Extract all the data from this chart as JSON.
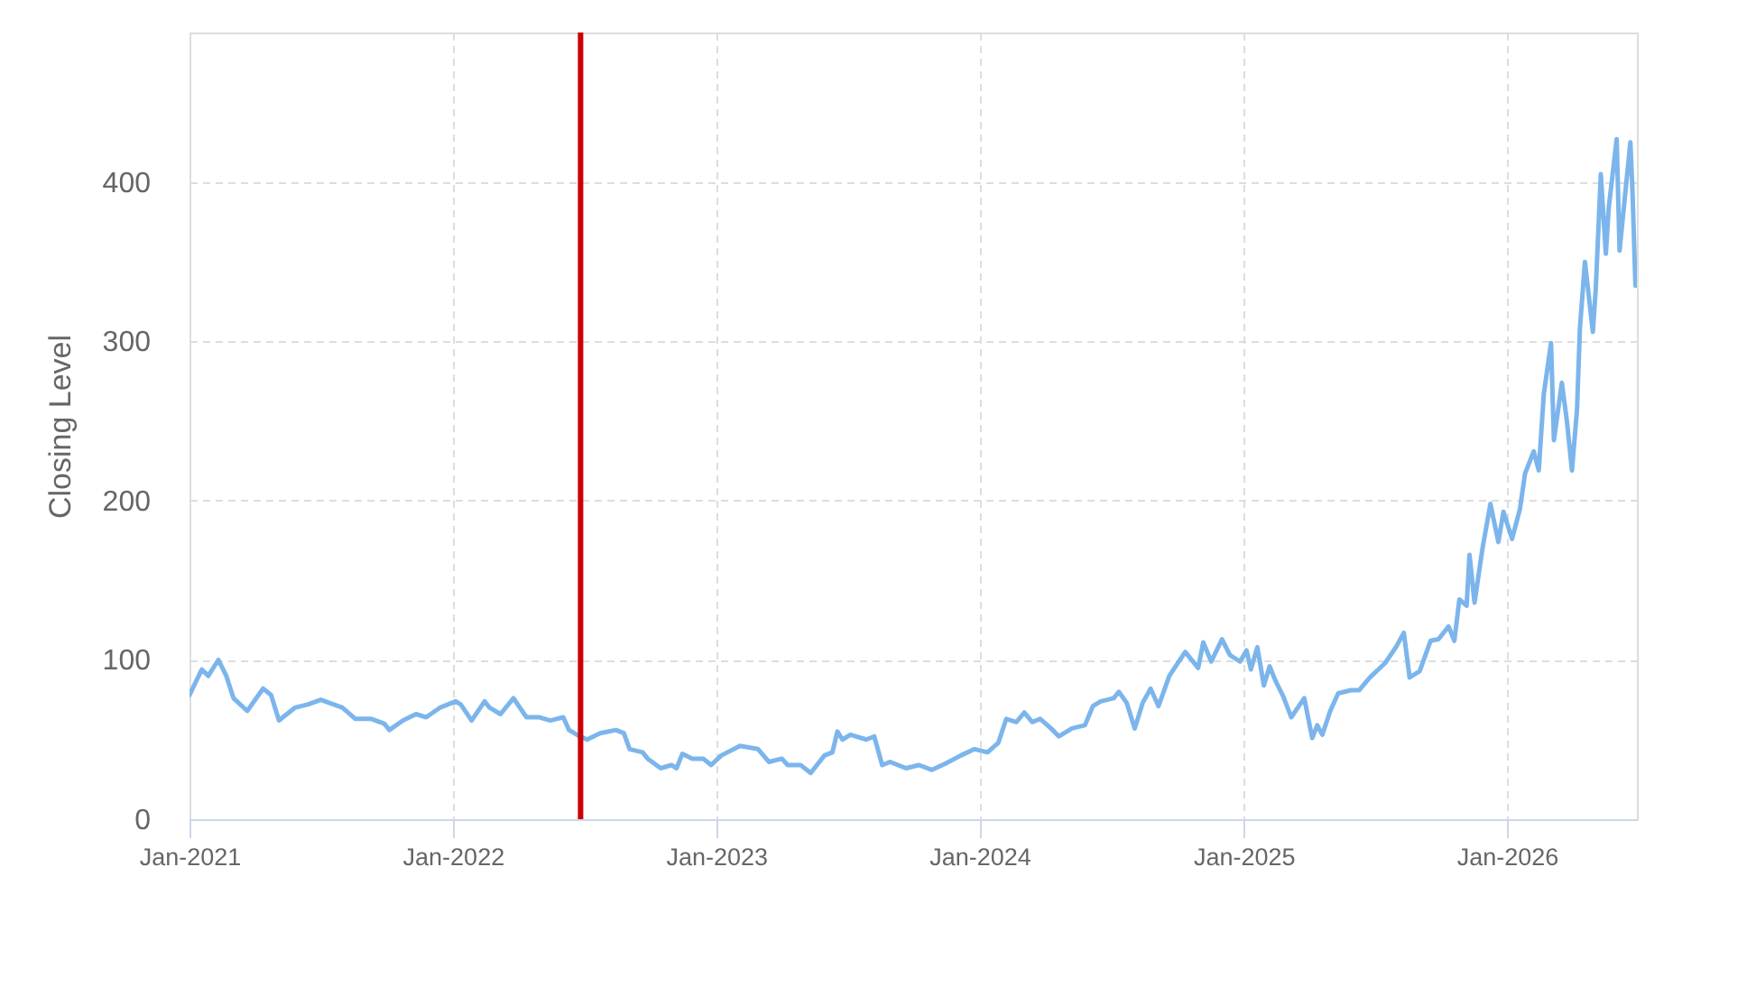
{
  "chart_data": {
    "type": "line",
    "ylabel": "Closing Level",
    "x": [
      "2021-01-01",
      "2021-01-18",
      "2021-01-27",
      "2021-02-10",
      "2021-02-21",
      "2021-03-03",
      "2021-03-22",
      "2021-04-13",
      "2021-04-24",
      "2021-05-05",
      "2021-05-27",
      "2021-06-14",
      "2021-07-02",
      "2021-08-01",
      "2021-08-19",
      "2021-09-10",
      "2021-09-28",
      "2021-10-05",
      "2021-10-24",
      "2021-11-11",
      "2021-11-25",
      "2021-12-14",
      "2022-01-05",
      "2022-01-12",
      "2022-01-27",
      "2022-02-14",
      "2022-02-21",
      "2022-03-08",
      "2022-03-26",
      "2022-04-13",
      "2022-05-01",
      "2022-05-16",
      "2022-06-03",
      "2022-06-11",
      "2022-06-22",
      "2022-07-06",
      "2022-07-24",
      "2022-08-15",
      "2022-08-26",
      "2022-09-03",
      "2022-09-21",
      "2022-09-28",
      "2022-10-16",
      "2022-10-31",
      "2022-11-07",
      "2022-11-15",
      "2022-11-29",
      "2022-12-14",
      "2022-12-25",
      "2023-01-08",
      "2023-02-03",
      "2023-02-28",
      "2023-03-15",
      "2023-04-02",
      "2023-04-10",
      "2023-04-28",
      "2023-05-12",
      "2023-05-31",
      "2023-06-11",
      "2023-06-18",
      "2023-06-25",
      "2023-07-06",
      "2023-07-28",
      "2023-08-08",
      "2023-08-19",
      "2023-08-30",
      "2023-09-21",
      "2023-10-09",
      "2023-10-27",
      "2023-11-15",
      "2023-12-06",
      "2023-12-25",
      "2024-01-12",
      "2024-01-27",
      "2024-02-07",
      "2024-02-21",
      "2024-03-03",
      "2024-03-14",
      "2024-03-25",
      "2024-04-09",
      "2024-04-20",
      "2024-05-08",
      "2024-05-26",
      "2024-06-06",
      "2024-06-17",
      "2024-07-05",
      "2024-07-12",
      "2024-07-23",
      "2024-08-03",
      "2024-08-14",
      "2024-08-25",
      "2024-09-05",
      "2024-09-20",
      "2024-10-12",
      "2024-10-30",
      "2024-11-06",
      "2024-11-17",
      "2024-12-02",
      "2024-12-13",
      "2024-12-27",
      "2025-01-05",
      "2025-01-11",
      "2025-01-20",
      "2025-01-29",
      "2025-02-06",
      "2025-02-14",
      "2025-02-25",
      "2025-03-08",
      "2025-03-26",
      "2025-04-06",
      "2025-04-13",
      "2025-04-20",
      "2025-05-01",
      "2025-05-12",
      "2025-05-30",
      "2025-06-10",
      "2025-06-25",
      "2025-07-16",
      "2025-07-31",
      "2025-08-11",
      "2025-08-19",
      "2025-09-02",
      "2025-09-17",
      "2025-09-28",
      "2025-10-12",
      "2025-10-20",
      "2025-10-27",
      "2025-11-06",
      "2025-11-10",
      "2025-11-17",
      "2025-11-28",
      "2025-12-09",
      "2025-12-20",
      "2025-12-27",
      "2026-01-08",
      "2026-01-19",
      "2026-01-26",
      "2026-02-07",
      "2026-02-14",
      "2026-02-21",
      "2026-03-03",
      "2026-03-07",
      "2026-03-18",
      "2026-03-25",
      "2026-04-01",
      "2026-04-08",
      "2026-04-12",
      "2026-04-19",
      "2026-04-30",
      "2026-05-04",
      "2026-05-11",
      "2026-05-18",
      "2026-05-22",
      "2026-06-02",
      "2026-06-06",
      "2026-06-13",
      "2026-06-21",
      "2026-06-24",
      "2026-06-28"
    ],
    "series": [
      {
        "color": "#7cb5ec",
        "values": [
          78,
          94,
          90,
          100,
          90,
          76,
          68,
          82,
          78,
          62,
          70,
          72,
          75,
          70,
          63,
          63,
          60,
          56,
          62,
          66,
          64,
          70,
          74,
          72,
          62,
          74,
          70,
          66,
          76,
          64,
          64,
          62,
          64,
          56,
          53,
          50,
          54,
          56,
          54,
          44,
          42,
          38,
          32,
          34,
          32,
          41,
          38,
          38,
          34,
          40,
          46,
          44,
          36,
          38,
          34,
          34,
          29,
          40,
          42,
          55,
          50,
          53,
          50,
          52,
          34,
          36,
          32,
          34,
          31,
          35,
          40,
          44,
          42,
          48,
          63,
          61,
          67,
          61,
          63,
          57,
          52,
          57,
          59,
          71,
          74,
          76,
          80,
          73,
          57,
          73,
          82,
          71,
          90,
          105,
          95,
          111,
          99,
          113,
          103,
          99,
          106,
          94,
          108,
          84,
          96,
          87,
          77,
          64,
          76,
          51,
          59,
          53,
          68,
          79,
          81,
          81,
          89,
          98,
          108,
          117,
          89,
          93,
          112,
          113,
          121,
          112,
          138,
          134,
          166,
          136,
          170,
          198,
          174,
          193,
          176,
          195,
          217,
          231,
          219,
          267,
          299,
          238,
          274,
          250,
          219,
          257,
          308,
          350,
          306,
          333,
          405,
          355,
          384,
          427,
          357,
          389,
          425,
          393,
          335
        ]
      }
    ],
    "xlim": [
      "2021-01-01",
      "2026-06-30"
    ],
    "xticks": [
      {
        "value": "2021-01-01",
        "label": "Jan-2021"
      },
      {
        "value": "2022-01-01",
        "label": "Jan-2022"
      },
      {
        "value": "2023-01-01",
        "label": "Jan-2023"
      },
      {
        "value": "2024-01-01",
        "label": "Jan-2024"
      },
      {
        "value": "2025-01-01",
        "label": "Jan-2025"
      },
      {
        "value": "2026-01-01",
        "label": "Jan-2026"
      }
    ],
    "ylim": [
      0,
      494
    ],
    "yticks": [
      0,
      100,
      200,
      300,
      400
    ],
    "grid": true,
    "line_style": "solid",
    "ref_lines": [
      {
        "axis": "x",
        "value": "2022-06-27",
        "color": "#cc0000"
      }
    ]
  }
}
